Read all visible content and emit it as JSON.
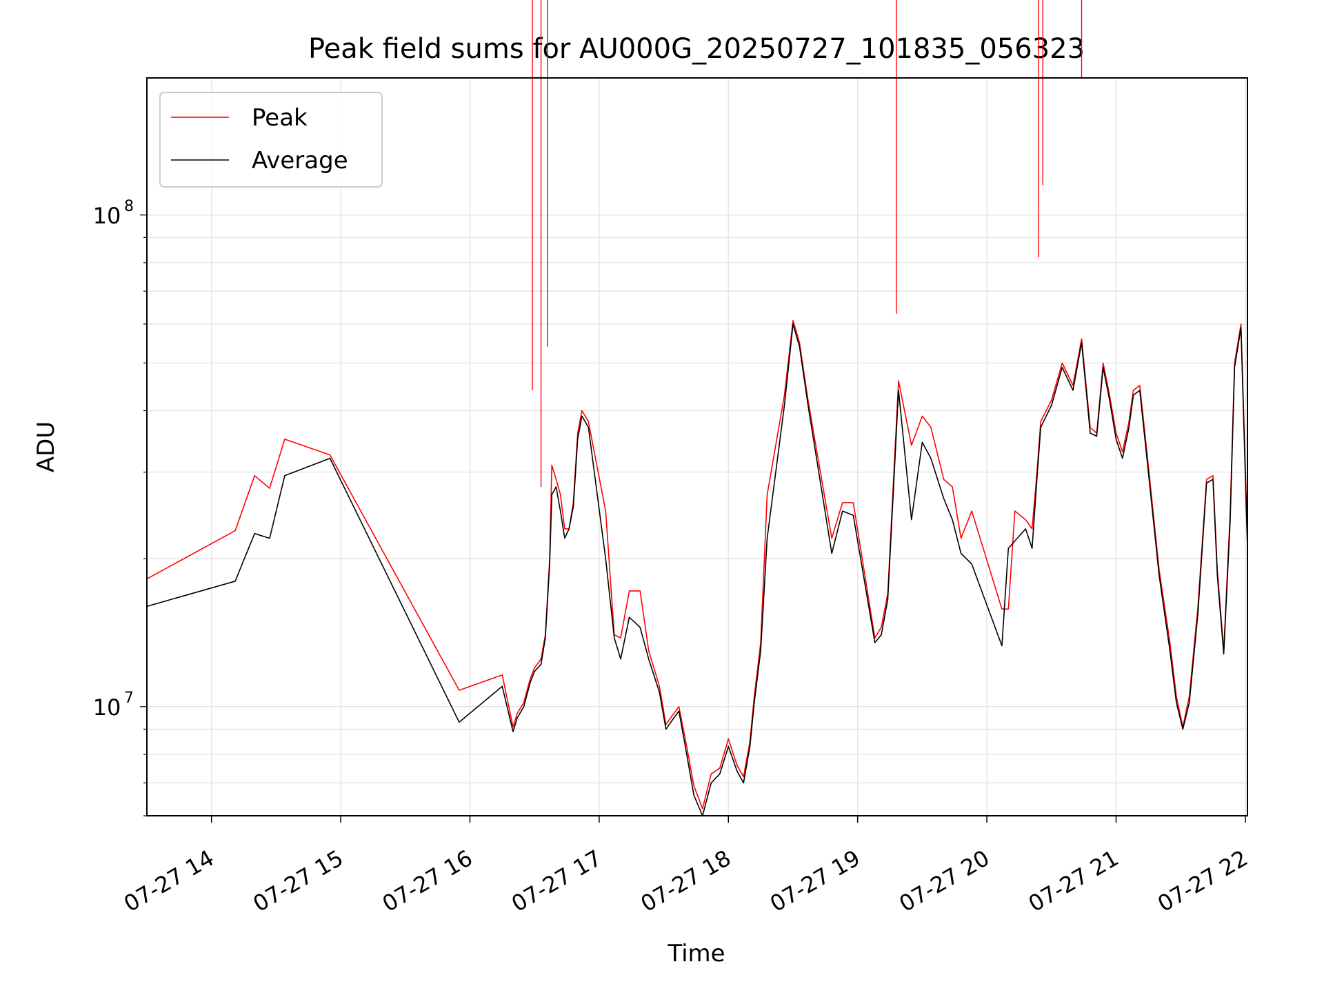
{
  "chart_data": {
    "type": "line",
    "title": "Peak field sums for AU000G_20250727_101835_056323",
    "xlabel": "Time",
    "ylabel": "ADU",
    "y_scale": "log",
    "ylim": [
      6000000.0,
      190000000.0
    ],
    "xlim": [
      "2025-07-27T13:30",
      "2025-07-27T22:01"
    ],
    "x_ticks": [
      "07-27 14",
      "07-27 15",
      "07-27 16",
      "07-27 17",
      "07-27 18",
      "07-27 19",
      "07-27 20",
      "07-27 21",
      "07-27 22"
    ],
    "x_tick_times": [
      "2025-07-27T14:00",
      "2025-07-27T15:00",
      "2025-07-27T16:00",
      "2025-07-27T17:00",
      "2025-07-27T18:00",
      "2025-07-27T19:00",
      "2025-07-27T20:00",
      "2025-07-27T21:00",
      "2025-07-27T22:00"
    ],
    "y_ticks": [
      {
        "label": "10",
        "exp": "7",
        "value": 10000000.0
      },
      {
        "label": "10",
        "exp": "8",
        "value": 100000000.0
      }
    ],
    "grid": true,
    "legend_position": "top-left",
    "series": [
      {
        "name": "Peak",
        "color": "#ff0000",
        "points": [
          [
            "2025-07-27T13:30",
            18200000.0
          ],
          [
            "2025-07-27T14:11",
            22800000.0
          ],
          [
            "2025-07-27T14:20",
            29500000.0
          ],
          [
            "2025-07-27T14:27",
            27800000.0
          ],
          [
            "2025-07-27T14:34",
            35000000.0
          ],
          [
            "2025-07-27T14:55",
            32500000.0
          ],
          [
            "2025-07-27T15:55",
            10800000.0
          ],
          [
            "2025-07-27T16:15",
            11600000.0
          ],
          [
            "2025-07-27T16:20",
            9100000.0
          ],
          [
            "2025-07-27T16:22",
            9700000.0
          ],
          [
            "2025-07-27T16:25",
            10200000.0
          ],
          [
            "2025-07-27T16:28",
            11400000.0
          ],
          [
            "2025-07-27T16:30",
            12000000.0
          ],
          [
            "2025-07-27T16:33",
            12500000.0
          ],
          [
            "2025-07-27T16:35",
            14000000.0
          ],
          [
            "2025-07-27T16:37",
            20000000.0
          ],
          [
            "2025-07-27T16:38",
            31000000.0
          ],
          [
            "2025-07-27T16:40",
            29000000.0
          ],
          [
            "2025-07-27T16:42",
            27000000.0
          ],
          [
            "2025-07-27T16:44",
            23000000.0
          ],
          [
            "2025-07-27T16:46",
            23000000.0
          ],
          [
            "2025-07-27T16:48",
            26000000.0
          ],
          [
            "2025-07-27T16:50",
            36000000.0
          ],
          [
            "2025-07-27T16:52",
            40000000.0
          ],
          [
            "2025-07-27T16:55",
            38000000.0
          ],
          [
            "2025-07-27T17:03",
            25000000.0
          ],
          [
            "2025-07-27T17:07",
            14000000.0
          ],
          [
            "2025-07-27T17:10",
            13800000.0
          ],
          [
            "2025-07-27T17:14",
            17200000.0
          ],
          [
            "2025-07-27T17:19",
            17200000.0
          ],
          [
            "2025-07-27T17:23",
            13000000.0
          ],
          [
            "2025-07-27T17:28",
            11000000.0
          ],
          [
            "2025-07-27T17:31",
            9200000.0
          ],
          [
            "2025-07-27T17:34",
            9600000.0
          ],
          [
            "2025-07-27T17:37",
            10000000.0
          ],
          [
            "2025-07-27T17:40",
            8600000.0
          ],
          [
            "2025-07-27T17:44",
            6900000.0
          ],
          [
            "2025-07-27T17:48",
            6200000.0
          ],
          [
            "2025-07-27T17:52",
            7300000.0
          ],
          [
            "2025-07-27T17:56",
            7500000.0
          ],
          [
            "2025-07-27T18:00",
            8600000.0
          ],
          [
            "2025-07-27T18:04",
            7600000.0
          ],
          [
            "2025-07-27T18:07",
            7200000.0
          ],
          [
            "2025-07-27T18:10",
            8500000.0
          ],
          [
            "2025-07-27T18:12",
            10500000.0
          ],
          [
            "2025-07-27T18:15",
            13500000.0
          ],
          [
            "2025-07-27T18:18",
            27000000.0
          ],
          [
            "2025-07-27T18:26",
            43000000.0
          ],
          [
            "2025-07-27T18:30",
            61000000.0
          ],
          [
            "2025-07-27T18:33",
            55000000.0
          ],
          [
            "2025-07-27T18:37",
            42000000.0
          ],
          [
            "2025-07-27T18:48",
            22000000.0
          ],
          [
            "2025-07-27T18:53",
            26000000.0
          ],
          [
            "2025-07-27T18:58",
            26000000.0
          ],
          [
            "2025-07-27T19:08",
            13800000.0
          ],
          [
            "2025-07-27T19:11",
            14500000.0
          ],
          [
            "2025-07-27T19:14",
            17000000.0
          ],
          [
            "2025-07-27T19:19",
            46000000.0
          ],
          [
            "2025-07-27T19:25",
            34000000.0
          ],
          [
            "2025-07-27T19:30",
            39000000.0
          ],
          [
            "2025-07-27T19:34",
            37000000.0
          ],
          [
            "2025-07-27T19:40",
            29000000.0
          ],
          [
            "2025-07-27T19:44",
            28000000.0
          ],
          [
            "2025-07-27T19:48",
            22000000.0
          ],
          [
            "2025-07-27T19:53",
            25000000.0
          ],
          [
            "2025-07-27T20:07",
            15800000.0
          ],
          [
            "2025-07-27T20:10",
            15800000.0
          ],
          [
            "2025-07-27T20:13",
            25000000.0
          ],
          [
            "2025-07-27T20:18",
            24000000.0
          ],
          [
            "2025-07-27T20:21",
            23000000.0
          ],
          [
            "2025-07-27T20:23",
            29000000.0
          ],
          [
            "2025-07-27T20:25",
            38000000.0
          ],
          [
            "2025-07-27T20:30",
            42000000.0
          ],
          [
            "2025-07-27T20:35",
            50000000.0
          ],
          [
            "2025-07-27T20:40",
            45000000.0
          ],
          [
            "2025-07-27T20:44",
            56000000.0
          ],
          [
            "2025-07-27T20:48",
            37000000.0
          ],
          [
            "2025-07-27T20:51",
            36000000.0
          ],
          [
            "2025-07-27T20:54",
            50000000.0
          ],
          [
            "2025-07-27T20:57",
            43000000.0
          ],
          [
            "2025-07-27T21:00",
            36000000.0
          ],
          [
            "2025-07-27T21:03",
            33000000.0
          ],
          [
            "2025-07-27T21:06",
            38000000.0
          ],
          [
            "2025-07-27T21:08",
            44000000.0
          ],
          [
            "2025-07-27T21:11",
            45000000.0
          ],
          [
            "2025-07-27T21:14",
            34000000.0
          ],
          [
            "2025-07-27T21:20",
            19000000.0
          ],
          [
            "2025-07-27T21:25",
            13500000.0
          ],
          [
            "2025-07-27T21:28",
            10500000.0
          ],
          [
            "2025-07-27T21:31",
            9100000.0
          ],
          [
            "2025-07-27T21:34",
            10500000.0
          ],
          [
            "2025-07-27T21:38",
            16000000.0
          ],
          [
            "2025-07-27T21:42",
            29000000.0
          ],
          [
            "2025-07-27T21:45",
            29500000.0
          ],
          [
            "2025-07-27T21:47",
            19000000.0
          ],
          [
            "2025-07-27T21:50",
            13000000.0
          ],
          [
            "2025-07-27T21:53",
            25000000.0
          ],
          [
            "2025-07-27T21:55",
            50000000.0
          ],
          [
            "2025-07-27T21:58",
            60000000.0
          ],
          [
            "2025-07-27T22:01",
            22000000.0
          ]
        ],
        "spikes": [
          [
            "2025-07-27T16:29",
            44000000.0
          ],
          [
            "2025-07-27T16:33",
            28000000.0
          ],
          [
            "2025-07-27T16:36",
            54000000.0
          ],
          [
            "2025-07-27T19:18",
            63000000.0
          ],
          [
            "2025-07-27T20:24",
            82000000.0
          ],
          [
            "2025-07-27T20:26",
            115000000.0
          ],
          [
            "2025-07-27T20:44",
            190000000.0
          ]
        ]
      },
      {
        "name": "Average",
        "color": "#000000",
        "points": [
          [
            "2025-07-27T13:30",
            16000000.0
          ],
          [
            "2025-07-27T14:11",
            18000000.0
          ],
          [
            "2025-07-27T14:20",
            22500000.0
          ],
          [
            "2025-07-27T14:27",
            22000000.0
          ],
          [
            "2025-07-27T14:34",
            29500000.0
          ],
          [
            "2025-07-27T14:55",
            32000000.0
          ],
          [
            "2025-07-27T15:55",
            9300000.0
          ],
          [
            "2025-07-27T16:15",
            11000000.0
          ],
          [
            "2025-07-27T16:20",
            8900000.0
          ],
          [
            "2025-07-27T16:22",
            9500000.0
          ],
          [
            "2025-07-27T16:25",
            10000000.0
          ],
          [
            "2025-07-27T16:28",
            11200000.0
          ],
          [
            "2025-07-27T16:30",
            11800000.0
          ],
          [
            "2025-07-27T16:33",
            12200000.0
          ],
          [
            "2025-07-27T16:35",
            13800000.0
          ],
          [
            "2025-07-27T16:37",
            19500000.0
          ],
          [
            "2025-07-27T16:38",
            27000000.0
          ],
          [
            "2025-07-27T16:40",
            28000000.0
          ],
          [
            "2025-07-27T16:42",
            25000000.0
          ],
          [
            "2025-07-27T16:44",
            22000000.0
          ],
          [
            "2025-07-27T16:46",
            23000000.0
          ],
          [
            "2025-07-27T16:48",
            25500000.0
          ],
          [
            "2025-07-27T16:50",
            35000000.0
          ],
          [
            "2025-07-27T16:52",
            39000000.0
          ],
          [
            "2025-07-27T16:55",
            37000000.0
          ],
          [
            "2025-07-27T17:03",
            20000000.0
          ],
          [
            "2025-07-27T17:07",
            13800000.0
          ],
          [
            "2025-07-27T17:10",
            12500000.0
          ],
          [
            "2025-07-27T17:14",
            15200000.0
          ],
          [
            "2025-07-27T17:19",
            14500000.0
          ],
          [
            "2025-07-27T17:23",
            12500000.0
          ],
          [
            "2025-07-27T17:28",
            10700000.0
          ],
          [
            "2025-07-27T17:31",
            9000000.0
          ],
          [
            "2025-07-27T17:34",
            9400000.0
          ],
          [
            "2025-07-27T17:37",
            9800000.0
          ],
          [
            "2025-07-27T17:40",
            8300000.0
          ],
          [
            "2025-07-27T17:44",
            6600000.0
          ],
          [
            "2025-07-27T17:48",
            6000000.0
          ],
          [
            "2025-07-27T17:52",
            7000000.0
          ],
          [
            "2025-07-27T17:56",
            7300000.0
          ],
          [
            "2025-07-27T18:00",
            8300000.0
          ],
          [
            "2025-07-27T18:04",
            7400000.0
          ],
          [
            "2025-07-27T18:07",
            7000000.0
          ],
          [
            "2025-07-27T18:10",
            8300000.0
          ],
          [
            "2025-07-27T18:12",
            10200000.0
          ],
          [
            "2025-07-27T18:15",
            13000000.0
          ],
          [
            "2025-07-27T18:18",
            22000000.0
          ],
          [
            "2025-07-27T18:26",
            41000000.0
          ],
          [
            "2025-07-27T18:30",
            60000000.0
          ],
          [
            "2025-07-27T18:33",
            54000000.0
          ],
          [
            "2025-07-27T18:37",
            41000000.0
          ],
          [
            "2025-07-27T18:48",
            20500000.0
          ],
          [
            "2025-07-27T18:53",
            25000000.0
          ],
          [
            "2025-07-27T18:58",
            24500000.0
          ],
          [
            "2025-07-27T19:08",
            13500000.0
          ],
          [
            "2025-07-27T19:11",
            14000000.0
          ],
          [
            "2025-07-27T19:14",
            16500000.0
          ],
          [
            "2025-07-27T19:19",
            44000000.0
          ],
          [
            "2025-07-27T19:25",
            24000000.0
          ],
          [
            "2025-07-27T19:30",
            34500000.0
          ],
          [
            "2025-07-27T19:34",
            32000000.0
          ],
          [
            "2025-07-27T19:40",
            26500000.0
          ],
          [
            "2025-07-27T19:44",
            24000000.0
          ],
          [
            "2025-07-27T19:48",
            20500000.0
          ],
          [
            "2025-07-27T19:53",
            19500000.0
          ],
          [
            "2025-07-27T20:07",
            13300000.0
          ],
          [
            "2025-07-27T20:10",
            21000000.0
          ],
          [
            "2025-07-27T20:18",
            23000000.0
          ],
          [
            "2025-07-27T20:21",
            21000000.0
          ],
          [
            "2025-07-27T20:23",
            28000000.0
          ],
          [
            "2025-07-27T20:25",
            37000000.0
          ],
          [
            "2025-07-27T20:30",
            41000000.0
          ],
          [
            "2025-07-27T20:35",
            49000000.0
          ],
          [
            "2025-07-27T20:40",
            44000000.0
          ],
          [
            "2025-07-27T20:44",
            55000000.0
          ],
          [
            "2025-07-27T20:48",
            36000000.0
          ],
          [
            "2025-07-27T20:51",
            35500000.0
          ],
          [
            "2025-07-27T20:54",
            49000000.0
          ],
          [
            "2025-07-27T20:57",
            42000000.0
          ],
          [
            "2025-07-27T21:00",
            35000000.0
          ],
          [
            "2025-07-27T21:03",
            32000000.0
          ],
          [
            "2025-07-27T21:06",
            37000000.0
          ],
          [
            "2025-07-27T21:08",
            43000000.0
          ],
          [
            "2025-07-27T21:11",
            44000000.0
          ],
          [
            "2025-07-27T21:14",
            33000000.0
          ],
          [
            "2025-07-27T21:20",
            18500000.0
          ],
          [
            "2025-07-27T21:25",
            13000000.0
          ],
          [
            "2025-07-27T21:28",
            10200000.0
          ],
          [
            "2025-07-27T21:31",
            9000000.0
          ],
          [
            "2025-07-27T21:34",
            10200000.0
          ],
          [
            "2025-07-27T21:38",
            15500000.0
          ],
          [
            "2025-07-27T21:42",
            28500000.0
          ],
          [
            "2025-07-27T21:45",
            29000000.0
          ],
          [
            "2025-07-27T21:47",
            18500000.0
          ],
          [
            "2025-07-27T21:50",
            12800000.0
          ],
          [
            "2025-07-27T21:53",
            24000000.0
          ],
          [
            "2025-07-27T21:55",
            49000000.0
          ],
          [
            "2025-07-27T21:58",
            59000000.0
          ],
          [
            "2025-07-27T22:01",
            21000000.0
          ]
        ]
      }
    ]
  }
}
